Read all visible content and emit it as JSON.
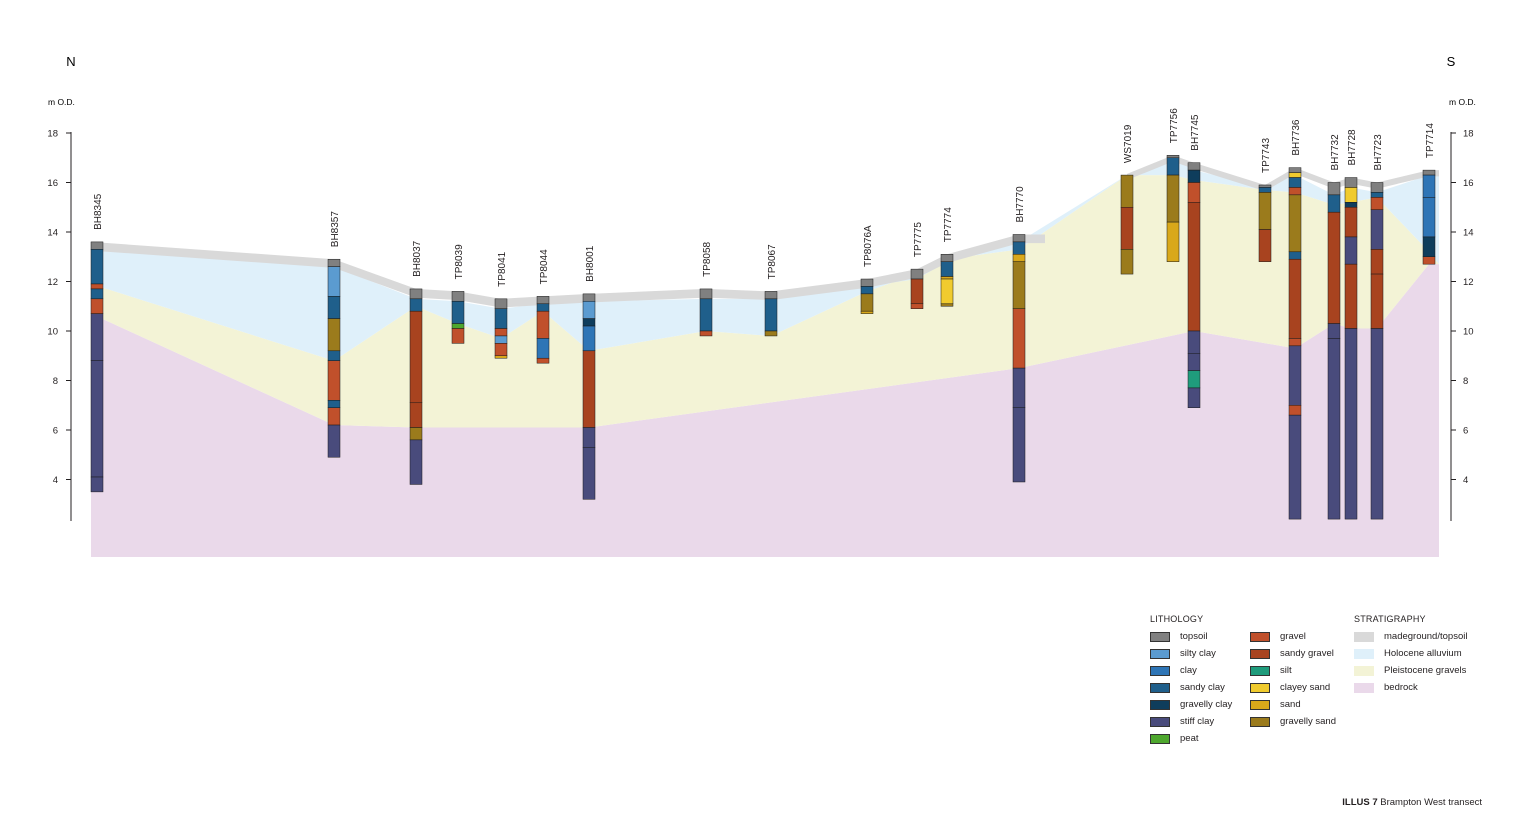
{
  "header": {
    "left_direction": "N",
    "right_direction": "S",
    "unit_label": "m O.D."
  },
  "axis": {
    "y_min": 2.4,
    "y_max": 18,
    "ticks": [
      4,
      6,
      8,
      10,
      12,
      14,
      16,
      18
    ],
    "tick_labels": [
      "4",
      "6",
      "8",
      "10",
      "12",
      "14",
      "16",
      "18"
    ]
  },
  "lithology_colors": {
    "topsoil": "#808080",
    "silty_clay": "#5b9bd0",
    "clay": "#2e75b6",
    "sandy_clay": "#1f5f8b",
    "gravelly_clay": "#0e3d5c",
    "stiff_clay": "#494b7c",
    "peat": "#4ea72e",
    "gravel": "#c0502b",
    "sandy_gravel": "#a8431f",
    "silt": "#1f9c7c",
    "clayey_sand": "#f0cb2e",
    "sand": "#d9a81a",
    "gravelly_sand": "#9b7b1c"
  },
  "strat_colors": {
    "madeground": "#d9d9d9",
    "holocene": "#dff0fa",
    "pleistocene": "#f3f3d6",
    "bedrock": "#ead9ea"
  },
  "boreholes": [
    {
      "name": "BH8345",
      "layers": [
        [
          "topsoil",
          13.6,
          13.3
        ],
        [
          "sandy_clay",
          13.3,
          11.9
        ],
        [
          "gravel",
          11.9,
          11.7
        ],
        [
          "sandy_clay",
          11.7,
          11.3
        ],
        [
          "gravel",
          11.3,
          10.7
        ],
        [
          "stiff_clay",
          10.7,
          8.8
        ],
        [
          "stiff_clay",
          8.8,
          4.1
        ],
        [
          "stiff_clay",
          4.1,
          3.5
        ]
      ]
    },
    {
      "name": "BH8357",
      "layers": [
        [
          "topsoil",
          12.9,
          12.6
        ],
        [
          "silty_clay",
          12.6,
          11.4
        ],
        [
          "sandy_clay",
          11.4,
          10.5
        ],
        [
          "gravelly_sand",
          10.5,
          9.2
        ],
        [
          "sandy_clay",
          9.2,
          8.8
        ],
        [
          "gravel",
          8.8,
          7.2
        ],
        [
          "sandy_clay",
          7.2,
          6.9
        ],
        [
          "gravel",
          6.9,
          6.2
        ],
        [
          "stiff_clay",
          6.2,
          4.9
        ]
      ]
    },
    {
      "name": "BH8037",
      "layers": [
        [
          "topsoil",
          11.7,
          11.3
        ],
        [
          "sandy_clay",
          11.3,
          10.8
        ],
        [
          "sandy_gravel",
          10.8,
          7.1
        ],
        [
          "sandy_gravel",
          7.1,
          6.1
        ],
        [
          "gravelly_sand",
          6.1,
          5.6
        ],
        [
          "stiff_clay",
          5.6,
          3.8
        ]
      ]
    },
    {
      "name": "TP8039",
      "layers": [
        [
          "topsoil",
          11.6,
          11.2
        ],
        [
          "sandy_clay",
          11.2,
          10.3
        ],
        [
          "peat",
          10.3,
          10.1
        ],
        [
          "gravel",
          10.1,
          9.5
        ]
      ]
    },
    {
      "name": "TP8041",
      "layers": [
        [
          "topsoil",
          11.3,
          10.9
        ],
        [
          "sandy_clay",
          10.9,
          10.1
        ],
        [
          "gravel",
          10.1,
          9.8
        ],
        [
          "silty_clay",
          9.8,
          9.5
        ],
        [
          "gravel",
          9.5,
          9.0
        ],
        [
          "sand",
          9.0,
          8.9
        ]
      ]
    },
    {
      "name": "TP8044",
      "layers": [
        [
          "topsoil",
          11.4,
          11.1
        ],
        [
          "sandy_clay",
          11.1,
          10.8
        ],
        [
          "gravel",
          10.8,
          9.7
        ],
        [
          "clay",
          9.7,
          8.9
        ],
        [
          "gravel",
          8.9,
          8.7
        ]
      ]
    },
    {
      "name": "BH8001",
      "layers": [
        [
          "topsoil",
          11.5,
          11.2
        ],
        [
          "silty_clay",
          11.2,
          10.5
        ],
        [
          "gravelly_clay",
          10.5,
          10.2
        ],
        [
          "clay",
          10.2,
          9.2
        ],
        [
          "sandy_gravel",
          9.2,
          6.1
        ],
        [
          "stiff_clay",
          6.1,
          5.3
        ],
        [
          "stiff_clay",
          5.3,
          3.2
        ]
      ]
    },
    {
      "name": "TP8058",
      "layers": [
        [
          "topsoil",
          11.7,
          11.3
        ],
        [
          "sandy_clay",
          11.3,
          10.0
        ],
        [
          "gravel",
          10.0,
          9.8
        ]
      ]
    },
    {
      "name": "TP8067",
      "layers": [
        [
          "topsoil",
          11.6,
          11.3
        ],
        [
          "sandy_clay",
          11.3,
          10.0
        ],
        [
          "gravelly_sand",
          10.0,
          9.8
        ]
      ]
    },
    {
      "name": "TP8076A",
      "layers": [
        [
          "topsoil",
          12.1,
          11.8
        ],
        [
          "sandy_clay",
          11.8,
          11.5
        ],
        [
          "gravelly_sand",
          11.5,
          10.8
        ],
        [
          "sand",
          10.8,
          10.7
        ]
      ]
    },
    {
      "name": "TP7775",
      "layers": [
        [
          "topsoil",
          12.5,
          12.1
        ],
        [
          "sandy_gravel",
          12.1,
          11.1
        ],
        [
          "gravel",
          11.1,
          10.9
        ]
      ]
    },
    {
      "name": "TP7774",
      "layers": [
        [
          "topsoil",
          13.1,
          12.8
        ],
        [
          "sandy_clay",
          12.8,
          12.2
        ],
        [
          "sand",
          12.2,
          12.1
        ],
        [
          "clayey_sand",
          12.1,
          11.1
        ],
        [
          "gravelly_sand",
          11.1,
          11.0
        ]
      ]
    },
    {
      "name": "BH7770",
      "layers": [
        [
          "topsoil",
          13.9,
          13.6
        ],
        [
          "sandy_clay",
          13.6,
          13.1
        ],
        [
          "sand",
          13.1,
          12.8
        ],
        [
          "gravelly_sand",
          12.8,
          10.9
        ],
        [
          "gravel",
          10.9,
          8.5
        ],
        [
          "stiff_clay",
          8.5,
          6.9
        ],
        [
          "stiff_clay",
          6.9,
          3.9
        ]
      ]
    },
    {
      "name": "WS7019",
      "layers": [
        [
          "gravelly_sand",
          16.3,
          15.0
        ],
        [
          "sandy_gravel",
          15.0,
          13.3
        ],
        [
          "gravelly_sand",
          13.3,
          12.3
        ]
      ]
    },
    {
      "name": "TP7756",
      "layers": [
        [
          "topsoil",
          17.1,
          17.0
        ],
        [
          "sandy_clay",
          17.0,
          16.3
        ],
        [
          "gravelly_sand",
          16.3,
          14.4
        ],
        [
          "sand",
          14.4,
          12.8
        ]
      ]
    },
    {
      "name": "BH7745",
      "layers": [
        [
          "topsoil",
          16.8,
          16.5
        ],
        [
          "gravelly_clay",
          16.5,
          16.0
        ],
        [
          "gravel",
          16.0,
          15.2
        ],
        [
          "sandy_gravel",
          15.2,
          10.0
        ],
        [
          "stiff_clay",
          10.0,
          9.1
        ],
        [
          "stiff_clay",
          9.1,
          8.4
        ],
        [
          "silt",
          8.4,
          7.7
        ],
        [
          "stiff_clay",
          7.7,
          6.9
        ]
      ]
    },
    {
      "name": "TP7743",
      "layers": [
        [
          "topsoil",
          15.9,
          15.8
        ],
        [
          "sandy_clay",
          15.8,
          15.6
        ],
        [
          "gravelly_sand",
          15.6,
          14.1
        ],
        [
          "sandy_gravel",
          14.1,
          12.8
        ]
      ]
    },
    {
      "name": "BH7736",
      "layers": [
        [
          "topsoil",
          16.6,
          16.4
        ],
        [
          "clayey_sand",
          16.4,
          16.2
        ],
        [
          "sandy_clay",
          16.2,
          15.8
        ],
        [
          "gravel",
          15.8,
          15.5
        ],
        [
          "gravelly_sand",
          15.5,
          13.2
        ],
        [
          "sandy_clay",
          13.2,
          12.9
        ],
        [
          "sandy_gravel",
          12.9,
          9.7
        ],
        [
          "gravel",
          9.7,
          9.4
        ],
        [
          "stiff_clay",
          9.4,
          7.0
        ],
        [
          "gravel",
          7.0,
          6.6
        ],
        [
          "stiff_clay",
          6.6,
          2.4
        ]
      ]
    },
    {
      "name": "BH7732",
      "layers": [
        [
          "topsoil",
          16.0,
          15.5
        ],
        [
          "sandy_clay",
          15.5,
          14.8
        ],
        [
          "sandy_gravel",
          14.8,
          10.3
        ],
        [
          "stiff_clay",
          10.3,
          9.7
        ],
        [
          "stiff_clay",
          9.7,
          2.4
        ]
      ]
    },
    {
      "name": "BH7728",
      "layers": [
        [
          "topsoil",
          16.2,
          15.8
        ],
        [
          "clayey_sand",
          15.8,
          15.2
        ],
        [
          "gravelly_clay",
          15.2,
          15.0
        ],
        [
          "sandy_gravel",
          15.0,
          13.8
        ],
        [
          "stiff_clay",
          13.8,
          12.7
        ],
        [
          "sandy_gravel",
          12.7,
          10.1
        ],
        [
          "stiff_clay",
          10.1,
          2.4
        ]
      ]
    },
    {
      "name": "BH7723",
      "layers": [
        [
          "topsoil",
          16.0,
          15.6
        ],
        [
          "sandy_clay",
          15.6,
          15.4
        ],
        [
          "gravel",
          15.4,
          14.9
        ],
        [
          "stiff_clay",
          14.9,
          13.3
        ],
        [
          "sandy_gravel",
          13.3,
          12.3
        ],
        [
          "sandy_gravel",
          12.3,
          10.1
        ],
        [
          "stiff_clay",
          10.1,
          2.4
        ]
      ]
    },
    {
      "name": "TP7714",
      "layers": [
        [
          "topsoil",
          16.5,
          16.3
        ],
        [
          "clay",
          16.3,
          15.4
        ],
        [
          "clay",
          15.4,
          13.8
        ],
        [
          "gravelly_clay",
          13.8,
          13.0
        ],
        [
          "gravel",
          13.0,
          12.7
        ]
      ]
    }
  ],
  "legend": {
    "lithology_title": "LITHOLOGY",
    "stratigraphy_title": "STRATIGRAPHY",
    "lithology_left": [
      {
        "label": "topsoil",
        "color": "#808080"
      },
      {
        "label": "silty clay",
        "color": "#5b9bd0"
      },
      {
        "label": "clay",
        "color": "#2e75b6"
      },
      {
        "label": "sandy clay",
        "color": "#1f5f8b"
      },
      {
        "label": "gravelly clay",
        "color": "#0e3d5c"
      },
      {
        "label": "stiff clay",
        "color": "#494b7c"
      },
      {
        "label": "peat",
        "color": "#4ea72e"
      }
    ],
    "lithology_right": [
      {
        "label": "gravel",
        "color": "#c0502b"
      },
      {
        "label": "sandy gravel",
        "color": "#a8431f"
      },
      {
        "label": "silt",
        "color": "#1f9c7c"
      },
      {
        "label": "clayey sand",
        "color": "#f0cb2e"
      },
      {
        "label": "sand",
        "color": "#d9a81a"
      },
      {
        "label": "gravelly sand",
        "color": "#9b7b1c"
      }
    ],
    "stratigraphy": [
      {
        "label": "madeground/topsoil",
        "color": "#d9d9d9"
      },
      {
        "label": "Holocene alluvium",
        "color": "#dff0fa"
      },
      {
        "label": "Pleistocene gravels",
        "color": "#f3f3d6"
      },
      {
        "label": "bedrock",
        "color": "#ead9ea"
      }
    ]
  },
  "caption": {
    "label": "ILLUS 7",
    "text": "Brampton West transect"
  }
}
